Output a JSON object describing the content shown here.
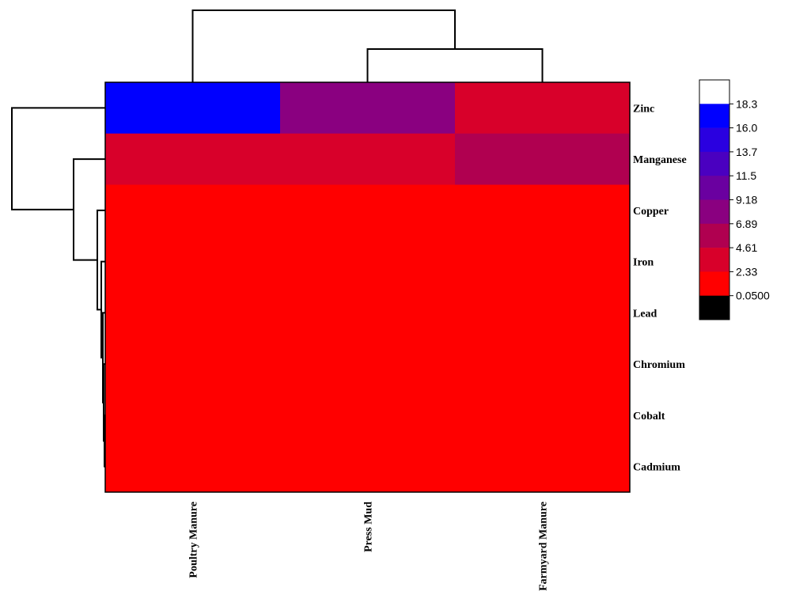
{
  "chart_data": {
    "type": "heatmap",
    "title": "",
    "rows": [
      "Zinc",
      "Manganese",
      "Copper",
      "Iron",
      "Lead",
      "Chromium",
      "Cobalt",
      "Cadmium"
    ],
    "columns": [
      "Poultry Manure",
      "Press Mud",
      "Farmyard Manure"
    ],
    "values": [
      [
        16.5,
        8.5,
        3.5
      ],
      [
        4.0,
        4.0,
        5.5
      ],
      [
        0.5,
        0.5,
        0.5
      ],
      [
        0.3,
        0.3,
        0.3
      ],
      [
        0.3,
        0.3,
        0.3
      ],
      [
        0.2,
        0.2,
        0.2
      ],
      [
        0.1,
        0.1,
        0.1
      ],
      [
        0.05,
        0.05,
        0.05
      ]
    ],
    "colorbar": {
      "ticks": [
        "18.3",
        "16.0",
        "13.7",
        "11.5",
        "9.18",
        "6.89",
        "4.61",
        "2.33",
        "0.0500"
      ],
      "tick_values": [
        18.3,
        16.0,
        13.7,
        11.5,
        9.18,
        6.89,
        4.61,
        2.33,
        0.05
      ],
      "band_colors": [
        "#ffffff",
        "#0000ff",
        "#2a00e0",
        "#4a00c0",
        "#6a00a0",
        "#8a0080",
        "#b00050",
        "#d8002a",
        "#ff0000",
        "#000000"
      ]
    },
    "grid": false,
    "legend": "right",
    "dendrograms": {
      "rows": true,
      "columns": true
    }
  }
}
